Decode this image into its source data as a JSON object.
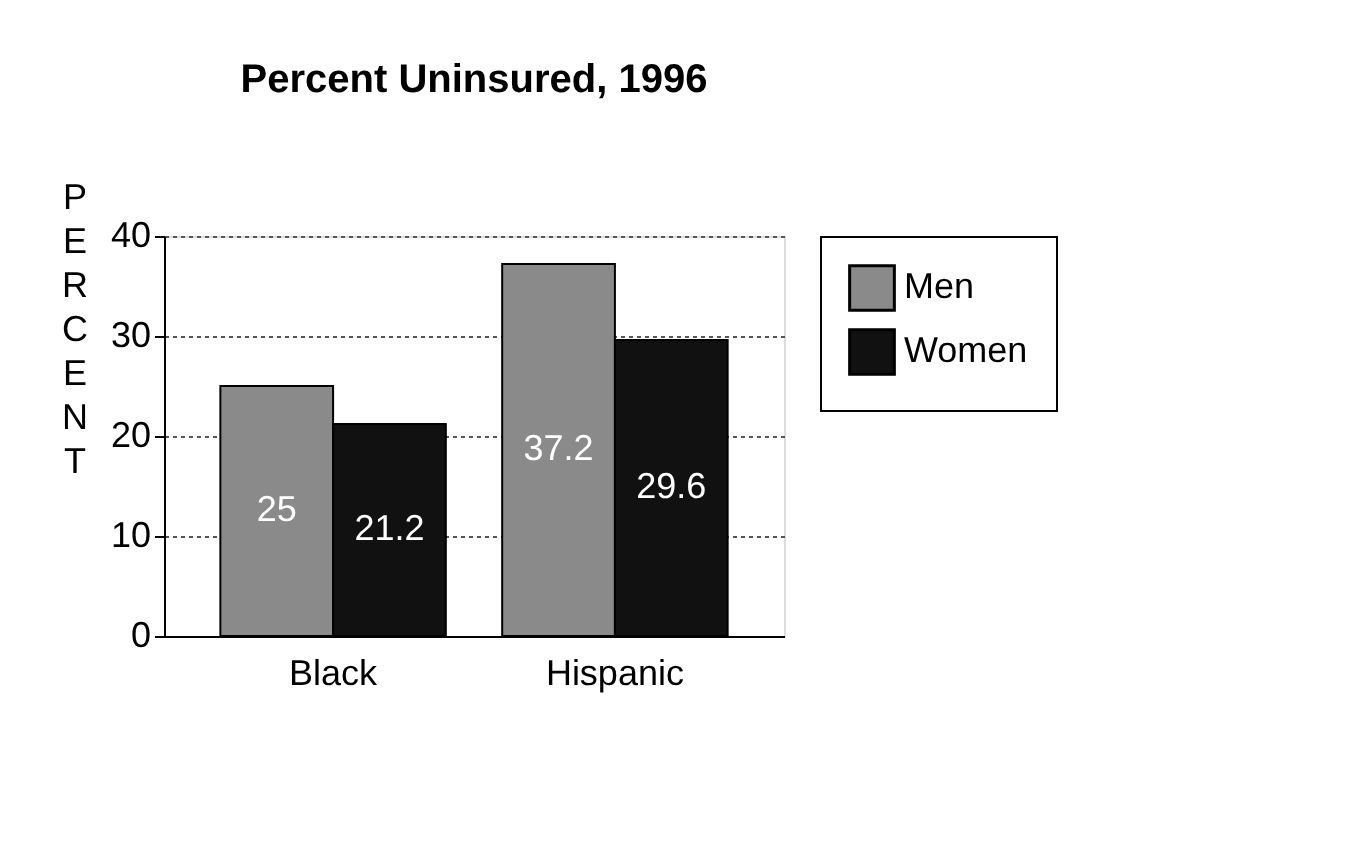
{
  "chart_data": {
    "type": "bar",
    "title": "Percent  Uninsured,  1996",
    "ylabel": "PERCENT",
    "categories": [
      "Black",
      "Hispanic"
    ],
    "series": [
      {
        "name": "Men",
        "color": "#8a8a8a",
        "values": [
          25,
          37.2
        ]
      },
      {
        "name": "Women",
        "color": "#111111",
        "values": [
          21.2,
          29.6
        ]
      }
    ],
    "ylim": [
      0,
      40
    ],
    "yticks": [
      0,
      10,
      20,
      30,
      40
    ],
    "grid": "y",
    "legend": "right",
    "data_labels": true
  }
}
